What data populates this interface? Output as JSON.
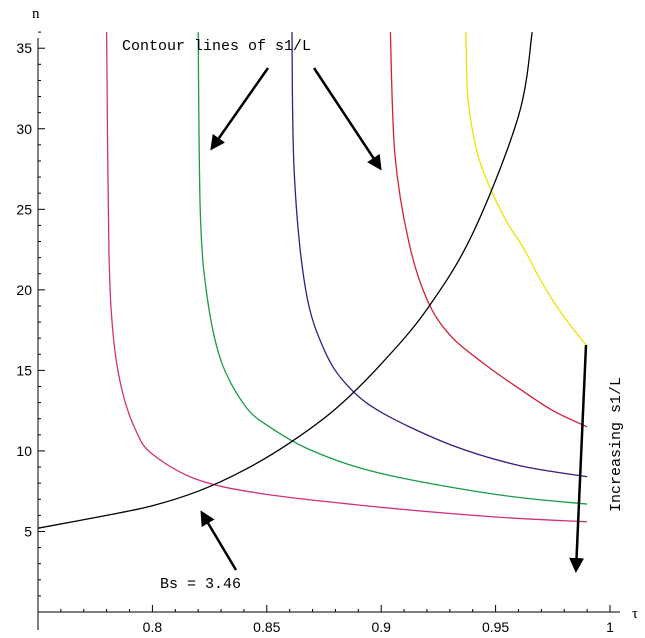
{
  "chart_data": {
    "type": "line",
    "xlabel": "τ",
    "ylabel": "n",
    "xlim": [
      0.75,
      1.0
    ],
    "ylim": [
      0,
      37
    ],
    "x_ticks": [
      0.8,
      0.85,
      0.9,
      0.95,
      1
    ],
    "x_tick_labels": [
      "0.8",
      "0.85",
      "0.9",
      "0.95",
      "1"
    ],
    "y_ticks": [
      5,
      10,
      15,
      20,
      25,
      30,
      35
    ],
    "y_tick_labels": [
      "5",
      "10",
      "15",
      "20",
      "25",
      "30",
      "35"
    ],
    "grid": false,
    "legend": "none",
    "series": [
      {
        "color": "#d0307a",
        "x": [
          0.78,
          0.781,
          0.783,
          0.787,
          0.793,
          0.8,
          0.82,
          0.85,
          0.9,
          0.95,
          0.99
        ],
        "y": [
          36,
          22.5,
          17.0,
          13.6,
          11.2,
          9.8,
          8.2,
          7.3,
          6.5,
          5.9,
          5.6
        ]
      },
      {
        "color": "#1a9a4a",
        "x": [
          0.82,
          0.821,
          0.824,
          0.83,
          0.84,
          0.85,
          0.87,
          0.9,
          0.95,
          0.99
        ],
        "y": [
          36,
          24.6,
          19.5,
          15.6,
          12.9,
          11.6,
          10.0,
          8.6,
          7.3,
          6.7
        ]
      },
      {
        "color": "#3a1a80",
        "x": [
          0.861,
          0.862,
          0.867,
          0.875,
          0.885,
          0.9,
          0.93,
          0.96,
          0.99
        ],
        "y": [
          36,
          27.2,
          20.0,
          16.3,
          14.1,
          12.4,
          10.4,
          9.1,
          8.4
        ]
      },
      {
        "color": "#d0203a",
        "x": [
          0.904,
          0.906,
          0.912,
          0.92,
          0.93,
          0.945,
          0.96,
          0.975,
          0.99
        ],
        "y": [
          36,
          28.4,
          23.0,
          19.4,
          17.2,
          15.4,
          13.9,
          12.5,
          11.5
        ]
      },
      {
        "color": "#f0e000",
        "x": [
          0.937,
          0.938,
          0.942,
          0.948,
          0.955,
          0.963,
          0.97,
          0.98,
          0.99
        ],
        "y": [
          36,
          31.8,
          28.5,
          26.2,
          24.2,
          22.4,
          20.5,
          18.3,
          16.5
        ]
      },
      {
        "color": "#000000",
        "x": [
          0.75,
          0.78,
          0.8,
          0.82,
          0.84,
          0.86,
          0.88,
          0.9,
          0.92,
          0.94,
          0.96,
          0.966
        ],
        "y": [
          5.2,
          6.0,
          6.6,
          7.5,
          8.8,
          10.5,
          12.6,
          15.4,
          18.8,
          23.5,
          30.8,
          36.0
        ]
      }
    ],
    "annotations": [
      {
        "text": "Contour lines of s1/L"
      },
      {
        "text": "Increasing s1/L"
      },
      {
        "text": "Bs = 3.46"
      }
    ]
  }
}
